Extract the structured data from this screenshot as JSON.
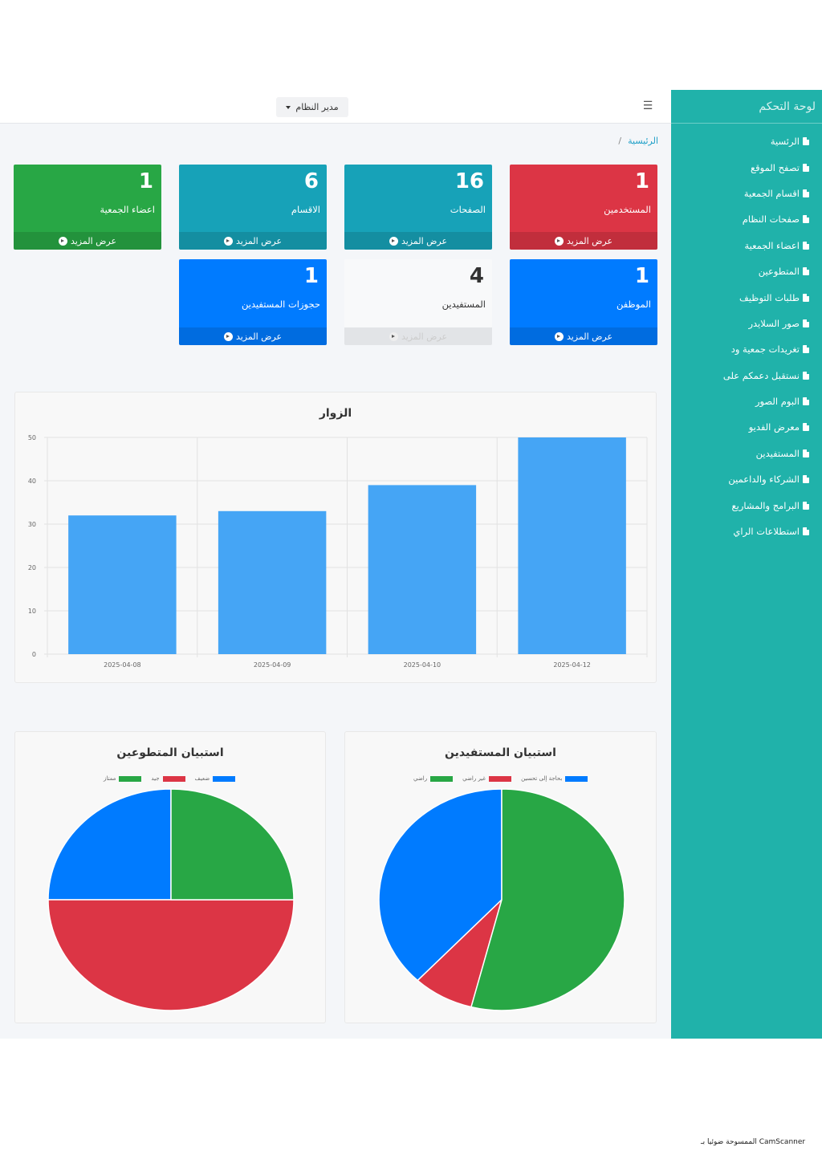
{
  "sidebar": {
    "brand": "لوحة التحكم",
    "items": [
      {
        "label": "الرئسية"
      },
      {
        "label": "تصفح الموقع"
      },
      {
        "label": "اقسام الجمعية"
      },
      {
        "label": "صفحات النظام"
      },
      {
        "label": "اعضاء الجمعية"
      },
      {
        "label": "المتطوعين"
      },
      {
        "label": "طلبات التوظيف"
      },
      {
        "label": "صور السلايدر"
      },
      {
        "label": "تغريدات جمعية ود"
      },
      {
        "label": "نستقبل دعمكم على"
      },
      {
        "label": "البوم الصور"
      },
      {
        "label": "معرض الفديو"
      },
      {
        "label": "المستفيدين"
      },
      {
        "label": "الشركاء والداعمين"
      },
      {
        "label": "البرامج والمشاريع"
      },
      {
        "label": "استطلاعات الراي"
      }
    ]
  },
  "topbar": {
    "menu_icon": "menu-icon",
    "user_label": "مدير النظام"
  },
  "breadcrumb": {
    "home": "الرئيسية",
    "separator": "/"
  },
  "cards": {
    "more_label": "عرض المزيد",
    "items": [
      {
        "count": "1",
        "label": "المستخدمين",
        "color": "#dc3545"
      },
      {
        "count": "16",
        "label": "الصفحات",
        "color": "#17a2b8"
      },
      {
        "count": "6",
        "label": "الاقسام",
        "color": "#17a2b8"
      },
      {
        "count": "1",
        "label": "اعضاء الجمعية",
        "color": "#28a745"
      },
      {
        "count": "1",
        "label": "الموظفن",
        "color": "#007bff"
      },
      {
        "count": "4",
        "label": "المستفيدين",
        "color": "#f8f9fa"
      },
      {
        "count": "1",
        "label": "حجوزات المستفيدين",
        "color": "#007bff"
      }
    ]
  },
  "chart_data": [
    {
      "type": "bar",
      "title": "الزوار",
      "categories": [
        "2025-04-08",
        "2025-04-09",
        "2025-04-10",
        "2025-04-12"
      ],
      "values": [
        32,
        33,
        39,
        50
      ],
      "ylim": [
        0,
        50
      ],
      "yticks": [
        0,
        10,
        20,
        30,
        40,
        50
      ],
      "color": "#45a5f5",
      "grid": true
    },
    {
      "type": "pie",
      "title": "استبيان المستفيدين",
      "legend": "top",
      "slices": [
        {
          "label": "بحاجة إلى تحسين",
          "value": 38,
          "color": "#007bff"
        },
        {
          "label": "غير راضي",
          "value": 8,
          "color": "#dc3545"
        },
        {
          "label": "راضي",
          "value": 54,
          "color": "#28a745"
        }
      ]
    },
    {
      "type": "pie",
      "title": "استبيان المتطوعين",
      "legend": "top",
      "slices": [
        {
          "label": "ضعيف",
          "value": 25,
          "color": "#007bff"
        },
        {
          "label": "جيد",
          "value": 50,
          "color": "#dc3545"
        },
        {
          "label": "ممتاز",
          "value": 25,
          "color": "#28a745"
        }
      ]
    }
  ],
  "footnote": "الممسوحة ضوئيا بـ CamScanner"
}
